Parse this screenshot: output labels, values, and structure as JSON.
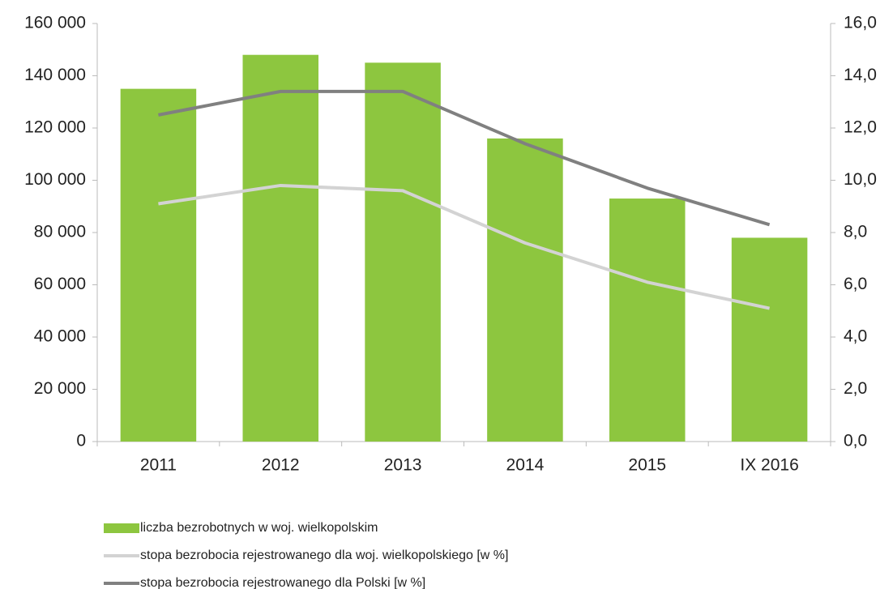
{
  "chart_data": {
    "type": "bar",
    "categories": [
      "2011",
      "2012",
      "2013",
      "2014",
      "2015",
      "IX 2016"
    ],
    "series": [
      {
        "name": "liczba bezrobotnych w woj. wielkopolskim",
        "type": "bar",
        "color": "#8dc63f",
        "values": [
          135000,
          148000,
          145000,
          116000,
          93000,
          78000
        ]
      },
      {
        "name": "stopa bezrobocia rejestrowanego dla woj. wielkopolskiego [w %]",
        "type": "line",
        "axis": "y2",
        "color": "#d3d3d3",
        "values": [
          9.1,
          9.8,
          9.6,
          7.6,
          6.1,
          5.1
        ]
      },
      {
        "name": "stopa bezrobocia rejestrowanego dla Polski [w %]",
        "type": "line",
        "axis": "y2",
        "color": "#808080",
        "values": [
          12.5,
          13.4,
          13.4,
          11.4,
          9.7,
          8.3
        ]
      }
    ],
    "ylim": [
      0,
      160000
    ],
    "yticks": [
      0,
      {
        "value": 20000,
        "label": "20 000"
      },
      {
        "value": 40000,
        "label": "40 000"
      },
      {
        "value": 60000,
        "label": "60 000"
      },
      {
        "value": 80000,
        "label": "80 000"
      },
      {
        "value": 100000,
        "label": "100 000"
      },
      {
        "value": 120000,
        "label": "120 000"
      },
      {
        "value": 140000,
        "label": "140 000"
      },
      {
        "value": 160000,
        "label": "160 000"
      }
    ],
    "y2lim": [
      0,
      16
    ],
    "y2ticks": [
      {
        "value": 0,
        "label": "0,0"
      },
      {
        "value": 2,
        "label": "2,0"
      },
      {
        "value": 4,
        "label": "4,0"
      },
      {
        "value": 6,
        "label": "6,0"
      },
      {
        "value": 8,
        "label": "8,0"
      },
      {
        "value": 10,
        "label": "10,0"
      },
      {
        "value": 12,
        "label": "12,0"
      },
      {
        "value": 14,
        "label": "14,0"
      },
      {
        "value": 16,
        "label": "16,0"
      }
    ],
    "grid": false,
    "legend": "bottom"
  }
}
